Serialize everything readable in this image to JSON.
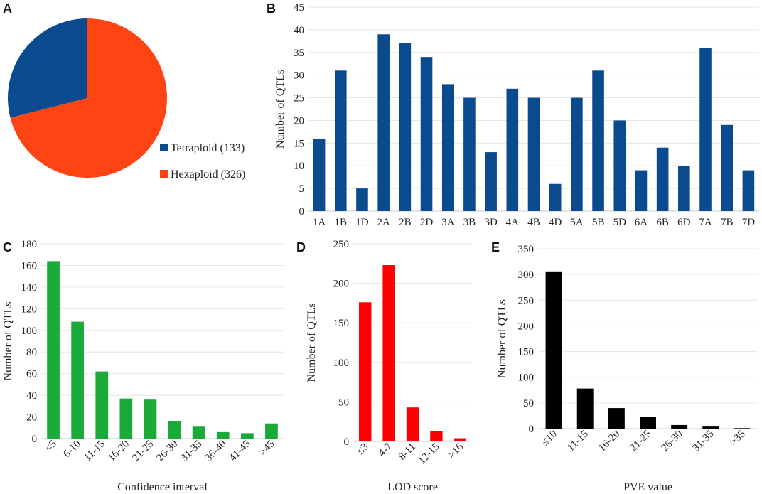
{
  "chart_data": [
    {
      "panel": "A",
      "type": "pie",
      "categories": [
        "Tetraploid (133)",
        "Hexaploid (326)"
      ],
      "values": [
        133,
        326
      ],
      "colors": [
        "#0a4a8f",
        "#ff4413"
      ],
      "legend": "right"
    },
    {
      "panel": "B",
      "type": "bar",
      "categories": [
        "1A",
        "1B",
        "1D",
        "2A",
        "2B",
        "2D",
        "3A",
        "3B",
        "3D",
        "4A",
        "4B",
        "4D",
        "5A",
        "5B",
        "5D",
        "6A",
        "6B",
        "6D",
        "7A",
        "7B",
        "7D"
      ],
      "values": [
        16,
        31,
        5,
        39,
        37,
        34,
        28,
        25,
        13,
        27,
        25,
        6,
        25,
        31,
        20,
        9,
        14,
        10,
        36,
        19,
        9
      ],
      "ylabel": "Number of QTLs",
      "xlabel": "",
      "ylim": [
        0,
        45
      ],
      "yticks": [
        0,
        5,
        10,
        15,
        20,
        25,
        30,
        35,
        40,
        45
      ],
      "color": "#0a4a8f",
      "grid": true
    },
    {
      "panel": "C",
      "type": "bar",
      "categories": [
        "<5",
        "6-10",
        "11-15",
        "16-20",
        "21-25",
        "26-30",
        "31-35",
        "36-40",
        "41-45",
        ">45"
      ],
      "values": [
        164,
        108,
        62,
        37,
        36,
        16,
        11,
        6,
        5,
        14
      ],
      "ylabel": "Number of QTLs",
      "xlabel": "Confidence interval",
      "ylim": [
        0,
        180
      ],
      "yticks": [
        0,
        20,
        40,
        60,
        80,
        100,
        120,
        140,
        160,
        180
      ],
      "color": "#1aaa3a",
      "grid": true
    },
    {
      "panel": "D",
      "type": "bar",
      "categories": [
        "≤3",
        "4-7",
        "8-11",
        "12-15",
        ">16"
      ],
      "values": [
        176,
        223,
        43,
        13,
        4
      ],
      "ylabel": "Number of QTLs",
      "xlabel": "LOD score",
      "ylim": [
        0,
        250
      ],
      "yticks": [
        0,
        50,
        100,
        150,
        200,
        250
      ],
      "color": "#ff0000",
      "grid": true
    },
    {
      "panel": "E",
      "type": "bar",
      "categories": [
        "≤10",
        "11-15",
        "16-20",
        "21-25",
        "26-30",
        "31-35",
        ">35"
      ],
      "values": [
        306,
        78,
        40,
        23,
        7,
        4,
        1
      ],
      "ylabel": "Number of QTLs",
      "xlabel": "PVE value",
      "ylim": [
        0,
        350
      ],
      "yticks": [
        0,
        50,
        100,
        150,
        200,
        250,
        300,
        350
      ],
      "color": "#000000",
      "grid": true
    }
  ]
}
